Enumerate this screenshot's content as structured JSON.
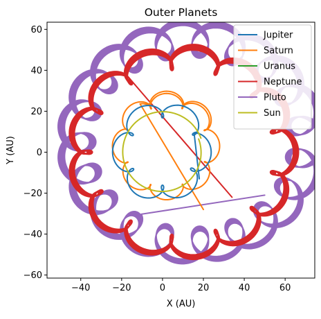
{
  "chart_data": {
    "type": "line",
    "title": "Outer Planets",
    "xlabel": "X (AU)",
    "ylabel": "Y (AU)",
    "xlim": [
      -56.5,
      74.5
    ],
    "ylim": [
      -61.5,
      63.5
    ],
    "xticks": [
      -40,
      -20,
      0,
      20,
      40,
      60
    ],
    "yticks": [
      -60,
      -40,
      -20,
      0,
      20,
      40,
      60
    ],
    "tick_labels_x": [
      "−40",
      "−20",
      "0",
      "20",
      "40",
      "60"
    ],
    "tick_labels_y": [
      "−60",
      "−40",
      "−20",
      "0",
      "20",
      "40",
      "60"
    ],
    "grid": false,
    "legend_position": "top-right",
    "series": [
      {
        "name": "Jupiter",
        "color": "#1f77b4",
        "center": [
          0,
          0
        ],
        "radius_x": 21,
        "radius_y": 21,
        "epicycle_radius": 4,
        "epicycles": 7,
        "turns": 1,
        "end": [
          18,
          -13
        ]
      },
      {
        "name": "Saturn",
        "color": "#ff7f0e",
        "center": [
          2,
          3
        ],
        "radius_x": 24,
        "radius_y": 24,
        "epicycle_radius": 3,
        "epicycles": 9,
        "turns": 1.3,
        "end": [
          20,
          -28
        ]
      },
      {
        "name": "Uranus",
        "color": "#2ca02c",
        "center": [
          0,
          0
        ],
        "radius_x": 0,
        "radius_y": 0,
        "epicycle_radius": 0,
        "epicycles": 0,
        "turns": 0
      },
      {
        "name": "Neptune",
        "color": "#d62728",
        "center": [
          10,
          0
        ],
        "radius_x": 52,
        "radius_y": 48,
        "epicycle_radius": 5,
        "epicycles": 14,
        "turns": 6.3,
        "end": [
          34,
          -22
        ]
      },
      {
        "name": "Pluto",
        "color": "#9467bd",
        "center": [
          14,
          5
        ],
        "radius_x": 58,
        "radius_y": 52,
        "epicycle_radius": 8,
        "epicycles": 20,
        "turns": 6.6,
        "end": [
          50,
          -21
        ]
      },
      {
        "name": "Sun",
        "color": "#bcbd22",
        "center": [
          0,
          0
        ],
        "radius_x": 20,
        "radius_y": 20,
        "epicycle_radius": 0,
        "epicycles": 0,
        "turns": 1
      }
    ]
  }
}
